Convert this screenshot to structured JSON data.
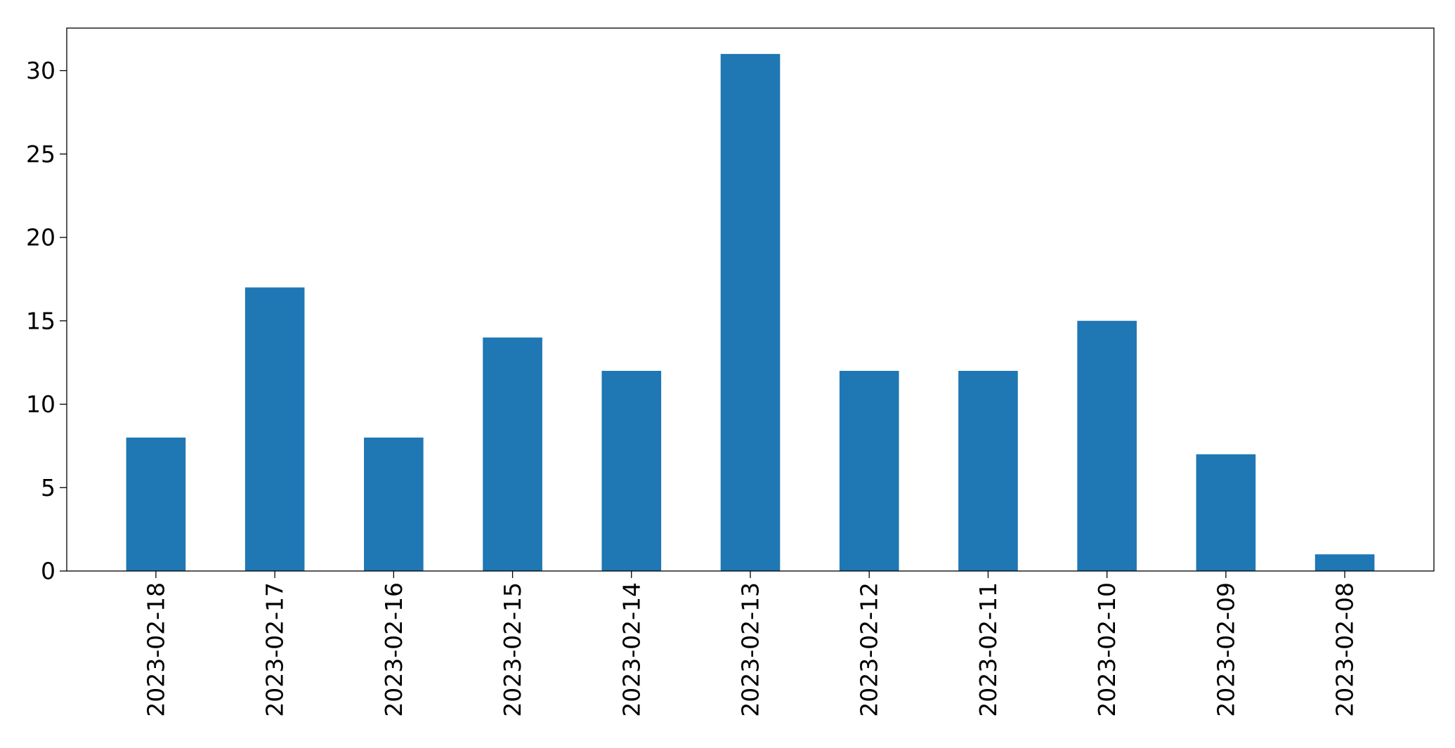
{
  "chart_data": {
    "type": "bar",
    "title": "",
    "xlabel": "",
    "ylabel": "",
    "categories": [
      "2023-02-18",
      "2023-02-17",
      "2023-02-16",
      "2023-02-15",
      "2023-02-14",
      "2023-02-13",
      "2023-02-12",
      "2023-02-11",
      "2023-02-10",
      "2023-02-09",
      "2023-02-08"
    ],
    "values": [
      8,
      17,
      8,
      14,
      12,
      31,
      12,
      12,
      15,
      7,
      1
    ],
    "ylim": [
      0,
      32.55
    ],
    "yticks": [
      0,
      5,
      10,
      15,
      20,
      25,
      30
    ],
    "grid": false,
    "legend": "none",
    "bar_color": "#1f77b4",
    "x_tick_rotation": 90
  }
}
